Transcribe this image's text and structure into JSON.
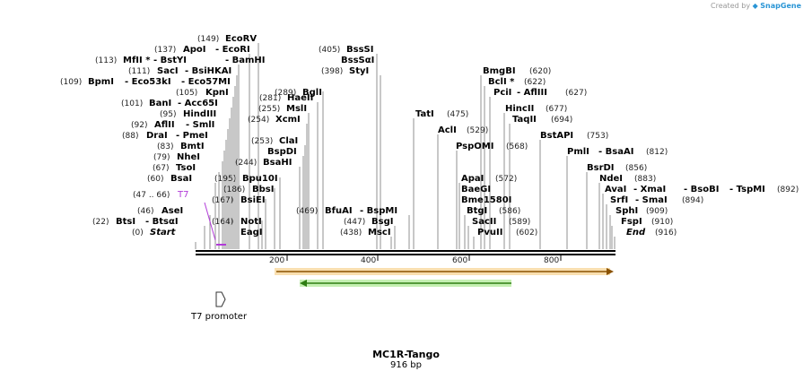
{
  "credit": {
    "prefix": "Created by",
    "brand": "SnapGene"
  },
  "sequence": {
    "name": "MC1R-Tango",
    "length_label": "916 bp"
  },
  "features": {
    "t7_promoter": "T7 promoter"
  },
  "colors": {
    "primer": "#b13bd8",
    "orange_feature": "#f0a23a",
    "green_feature": "#6bd24d",
    "brand": "#2a95d5"
  },
  "ruler_ticks": [
    "200",
    "400",
    "600",
    "800"
  ],
  "sites": [
    {
      "pos": "(0)",
      "name": "Start"
    },
    {
      "pos": "(22)",
      "name": "BtsI",
      "alt": "- BtsαI"
    },
    {
      "pos": "(46)",
      "name": "AseI"
    },
    {
      "pos": "(47 .. 66)",
      "name": "T7"
    },
    {
      "pos": "(60)",
      "name": "BsaI"
    },
    {
      "pos": "(67)",
      "name": "TsoI"
    },
    {
      "pos": "(79)",
      "name": "NheI"
    },
    {
      "pos": "(83)",
      "name": "BmtI"
    },
    {
      "pos": "(88)",
      "name": "DraI",
      "alt": "- PmeI"
    },
    {
      "pos": "(92)",
      "name": "AflII",
      "alt": "- SmlI"
    },
    {
      "pos": "(95)",
      "name": "HindIII"
    },
    {
      "pos": "(101)",
      "name": "BanI",
      "alt": "- Acc65I"
    },
    {
      "pos": "(105)",
      "name": "KpnI"
    },
    {
      "pos": "(109)",
      "name": "BpmI",
      "alt": "- Eco53kI",
      "alt2": "- Eco57MI"
    },
    {
      "pos": "(111)",
      "name": "SacI",
      "alt": "- BsiHKAI"
    },
    {
      "pos": "(113)",
      "name": "MfII *",
      "alt": "- BstYI",
      "alt2": "- BamHI"
    },
    {
      "pos": "(137)",
      "name": "ApoI",
      "alt": "- EcoRI"
    },
    {
      "pos": "(149)",
      "name": "EcoRV"
    },
    {
      "pos": "(164)",
      "name": "NotI"
    },
    {
      "pos": "",
      "name": "EagI"
    },
    {
      "pos": "(167)",
      "name": "BsiEI"
    },
    {
      "pos": "(186)",
      "name": "BbsI"
    },
    {
      "pos": "(195)",
      "name": "Bpu10I"
    },
    {
      "pos": "(244)",
      "name": "BsaHI"
    },
    {
      "pos": "",
      "name": "BspDI"
    },
    {
      "pos": "(253)",
      "name": "ClaI"
    },
    {
      "pos": "(254)",
      "name": "XcmI"
    },
    {
      "pos": "(255)",
      "name": "MslI"
    },
    {
      "pos": "(281)",
      "name": "HaeII"
    },
    {
      "pos": "(289)",
      "name": "BglI"
    },
    {
      "pos": "(405)",
      "name": "BssSI"
    },
    {
      "pos": "",
      "name": "BssSαI"
    },
    {
      "pos": "(398)",
      "name": "StyI"
    },
    {
      "pos": "(469)",
      "name": "BfuAI",
      "alt": "- BspMI"
    },
    {
      "pos": "(447)",
      "name": "BsgI"
    },
    {
      "pos": "(438)",
      "name": "MscI"
    },
    {
      "pos": "(475)",
      "name": "TatI"
    },
    {
      "pos": "(529)",
      "name": "AclI"
    },
    {
      "pos": "(568)",
      "name": "PspOMI"
    },
    {
      "pos": "(572)",
      "name": "ApaI"
    },
    {
      "pos": "",
      "name": "BaeGI"
    },
    {
      "pos": "",
      "name": "Bme1580I"
    },
    {
      "pos": "(586)",
      "name": "BtgI"
    },
    {
      "pos": "(589)",
      "name": "SacII"
    },
    {
      "pos": "(602)",
      "name": "PvuII"
    },
    {
      "pos": "(620)",
      "name": "BmgBI"
    },
    {
      "pos": "(622)",
      "name": "BclI *"
    },
    {
      "pos": "(627)",
      "name": "PciI",
      "alt": "- AflIII"
    },
    {
      "pos": "(677)",
      "name": "HincII"
    },
    {
      "pos": "(694)",
      "name": "TaqII"
    },
    {
      "pos": "(753)",
      "name": "BstAPI"
    },
    {
      "pos": "(812)",
      "name": "PmlI",
      "alt": "- BsaAI"
    },
    {
      "pos": "(856)",
      "name": "BsrDI"
    },
    {
      "pos": "(883)",
      "name": "NdeI"
    },
    {
      "pos": "(892)",
      "name": "AvaI",
      "alt": "- XmaI",
      "alt2": "- BsoBI",
      "alt3": "- TspMI"
    },
    {
      "pos": "(894)",
      "name": "SrfI",
      "alt": "- SmaI"
    },
    {
      "pos": "(909)",
      "name": "SphI"
    },
    {
      "pos": "(910)",
      "name": "FspI"
    },
    {
      "pos": "(916)",
      "name": "End"
    }
  ]
}
